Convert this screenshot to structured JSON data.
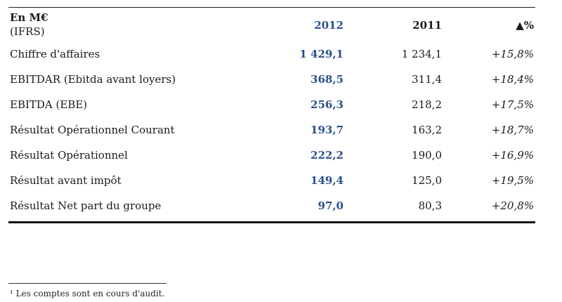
{
  "header": {
    "unit": "En M€",
    "standard": "(IFRS)",
    "col_2012": "2012",
    "col_2011": "2011",
    "col_var": "▲%"
  },
  "rows": [
    {
      "label": "Chiffre d'affaires",
      "v2012": "1 429,1",
      "v2011": "1 234,1",
      "var": "+15,8%"
    },
    {
      "label": "EBITDAR (Ebitda avant loyers)",
      "v2012": "368,5",
      "v2011": "311,4",
      "var": "+18,4%"
    },
    {
      "label": "EBITDA (EBE)",
      "v2012": "256,3",
      "v2011": "218,2",
      "var": "+17,5%"
    },
    {
      "label": "Résultat Opérationnel Courant",
      "v2012": "193,7",
      "v2011": "163,2",
      "var": "+18,7%"
    },
    {
      "label": "Résultat Opérationnel",
      "v2012": "222,2",
      "v2011": "190,0",
      "var": "+16,9%"
    },
    {
      "label": "Résultat avant impôt",
      "v2012": "149,4",
      "v2011": "125,0",
      "var": "+19,5%"
    },
    {
      "label": "Résultat Net part du groupe",
      "v2012": "97,0",
      "v2011": "80,3",
      "var": "+20,8%"
    }
  ],
  "footnote": "¹ Les comptes sont en cours d'audit.",
  "colors": {
    "accent_2012": "#2a4f8a"
  }
}
